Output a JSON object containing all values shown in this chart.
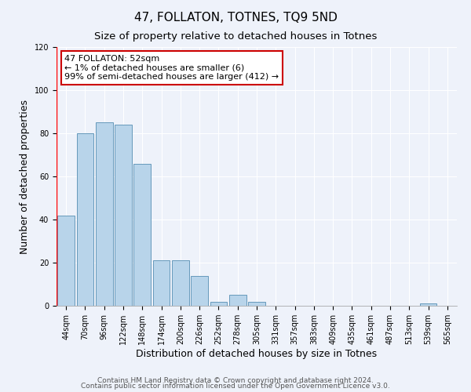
{
  "title": "47, FOLLATON, TOTNES, TQ9 5ND",
  "subtitle": "Size of property relative to detached houses in Totnes",
  "xlabel": "Distribution of detached houses by size in Totnes",
  "ylabel": "Number of detached properties",
  "bar_labels": [
    "44sqm",
    "70sqm",
    "96sqm",
    "122sqm",
    "148sqm",
    "174sqm",
    "200sqm",
    "226sqm",
    "252sqm",
    "278sqm",
    "305sqm",
    "331sqm",
    "357sqm",
    "383sqm",
    "409sqm",
    "435sqm",
    "461sqm",
    "487sqm",
    "513sqm",
    "539sqm",
    "565sqm"
  ],
  "bar_values": [
    42,
    80,
    85,
    84,
    66,
    21,
    21,
    14,
    2,
    5,
    2,
    0,
    0,
    0,
    0,
    0,
    0,
    0,
    0,
    1,
    0
  ],
  "bar_color": "#b8d4ea",
  "bar_edge_color": "#6699bb",
  "annotation_box_text": "47 FOLLATON: 52sqm\n← 1% of detached houses are smaller (6)\n99% of semi-detached houses are larger (412) →",
  "annotation_box_facecolor": "#ffffff",
  "annotation_box_edgecolor": "#cc0000",
  "ylim": [
    0,
    120
  ],
  "yticks": [
    0,
    20,
    40,
    60,
    80,
    100,
    120
  ],
  "footer1": "Contains HM Land Registry data © Crown copyright and database right 2024.",
  "footer2": "Contains public sector information licensed under the Open Government Licence v3.0.",
  "background_color": "#eef2fa",
  "grid_color": "#ffffff",
  "title_fontsize": 11,
  "subtitle_fontsize": 9.5,
  "axis_label_fontsize": 9,
  "tick_fontsize": 7,
  "annotation_fontsize": 8,
  "footer_fontsize": 6.5
}
